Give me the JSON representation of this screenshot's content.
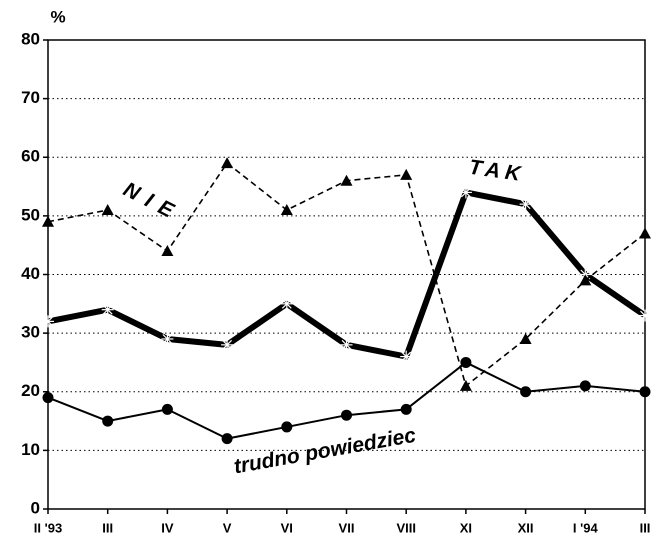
{
  "chart_data": {
    "type": "line",
    "ylabel": "%",
    "categories": [
      "II '93",
      "III",
      "IV",
      "V",
      "VI",
      "VII",
      "VIII",
      "XI",
      "XII",
      "I '94",
      "III"
    ],
    "series": [
      {
        "name": "TAK",
        "color": "#000000",
        "marker": "star",
        "dashed": false,
        "width": 6,
        "values": [
          32,
          34,
          29,
          28,
          35,
          28,
          26,
          54,
          52,
          40,
          33
        ]
      },
      {
        "name": "NIE",
        "color": "#000000",
        "marker": "triangle",
        "dashed": true,
        "width": 1.6,
        "values": [
          49,
          51,
          44,
          59,
          51,
          56,
          57,
          21,
          29,
          39,
          47
        ]
      },
      {
        "name": "trudno powiedziec",
        "color": "#000000",
        "marker": "circle",
        "dashed": false,
        "width": 2,
        "values": [
          19,
          15,
          17,
          12,
          14,
          16,
          17,
          25,
          20,
          21,
          20
        ]
      }
    ],
    "ylim": [
      0,
      80
    ],
    "yticks": [
      0,
      10,
      20,
      30,
      40,
      50,
      60,
      70,
      80
    ],
    "grid": true
  }
}
